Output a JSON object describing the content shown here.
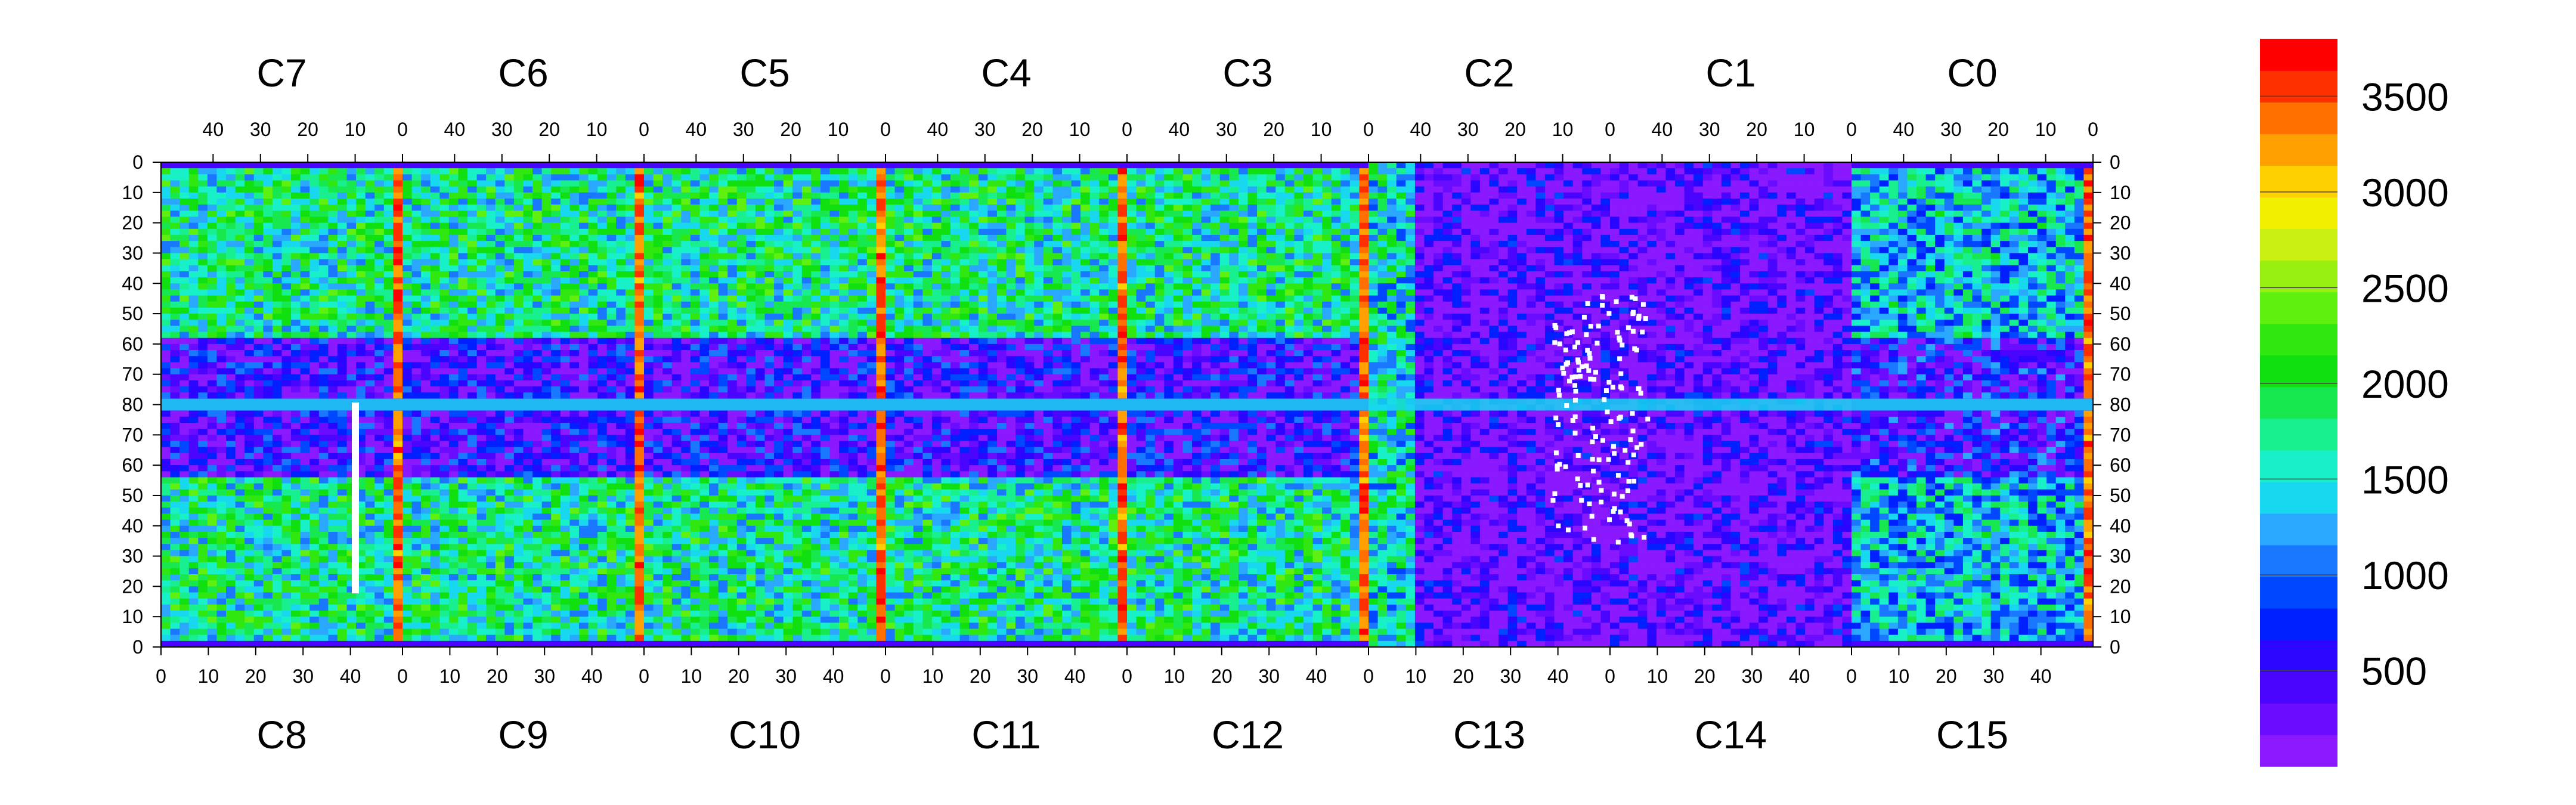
{
  "chart_data": {
    "type": "heatmap",
    "top_chip_labels": [
      "C7",
      "C6",
      "C5",
      "C4",
      "C3",
      "C2",
      "C1",
      "C0"
    ],
    "bottom_chip_labels": [
      "C8",
      "C9",
      "C10",
      "C11",
      "C12",
      "C13",
      "C14",
      "C15"
    ],
    "chip_columns": 52,
    "chip_rows": 80,
    "top_x_ticks": [
      "40",
      "30",
      "20",
      "10",
      "0"
    ],
    "bottom_x_ticks": [
      "0",
      "10",
      "20",
      "30",
      "40"
    ],
    "y_ticks_top_half": [
      "0",
      "10",
      "20",
      "30",
      "40",
      "50",
      "60",
      "70",
      "80"
    ],
    "y_ticks_bottom_half": [
      "70",
      "60",
      "50",
      "40",
      "30",
      "20",
      "10",
      "0"
    ],
    "colorbar": {
      "min": 0,
      "max": 3800,
      "ticks": [
        "500",
        "1000",
        "1500",
        "2000",
        "2500",
        "3000",
        "3500"
      ],
      "tick_values": [
        500,
        1000,
        1500,
        2000,
        2500,
        3000,
        3500
      ],
      "colors": [
        "#8a19ff",
        "#6a0cff",
        "#4a05ff",
        "#2a05ff",
        "#0020ff",
        "#0048ff",
        "#1978ff",
        "#2aa8ff",
        "#18d8f0",
        "#18f0c8",
        "#18f090",
        "#18e850",
        "#10e010",
        "#30e810",
        "#60f010",
        "#98f010",
        "#c8f010",
        "#f0f000",
        "#ffd000",
        "#ffa000",
        "#ff7000",
        "#ff3000",
        "#ff0000"
      ]
    },
    "grid": false
  }
}
